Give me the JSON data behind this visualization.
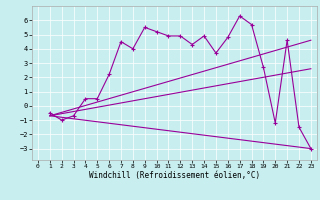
{
  "xlabel": "Windchill (Refroidissement éolien,°C)",
  "background_color": "#c8eef0",
  "line_color": "#990099",
  "xlim": [
    -0.5,
    23.5
  ],
  "ylim": [
    -3.8,
    7.0
  ],
  "yticks": [
    -3,
    -2,
    -1,
    0,
    1,
    2,
    3,
    4,
    5,
    6
  ],
  "xticks": [
    0,
    1,
    2,
    3,
    4,
    5,
    6,
    7,
    8,
    9,
    10,
    11,
    12,
    13,
    14,
    15,
    16,
    17,
    18,
    19,
    20,
    21,
    22,
    23
  ],
  "series": [
    {
      "x": [
        1,
        2,
        3,
        4,
        5,
        6,
        7,
        8,
        9,
        10,
        11,
        12,
        13,
        14,
        15,
        16,
        17,
        18,
        19,
        20,
        21,
        22,
        23
      ],
      "y": [
        -0.5,
        -1.0,
        -0.7,
        0.5,
        0.5,
        2.2,
        4.5,
        4.0,
        5.5,
        5.2,
        4.9,
        4.9,
        4.3,
        4.9,
        3.7,
        4.8,
        6.3,
        5.7,
        2.7,
        -1.2,
        4.6,
        -1.5,
        -3.0
      ],
      "marker": true
    },
    {
      "x": [
        1,
        23
      ],
      "y": [
        -0.7,
        4.6
      ],
      "marker": false
    },
    {
      "x": [
        1,
        23
      ],
      "y": [
        -0.7,
        2.6
      ],
      "marker": false
    },
    {
      "x": [
        1,
        23
      ],
      "y": [
        -0.7,
        -3.0
      ],
      "marker": false
    }
  ],
  "xlabel_fontsize": 5.5,
  "tick_labelsize": 5,
  "linewidth": 0.8,
  "markersize": 3.5,
  "grid_color": "#ffffff",
  "grid_linewidth": 0.5
}
